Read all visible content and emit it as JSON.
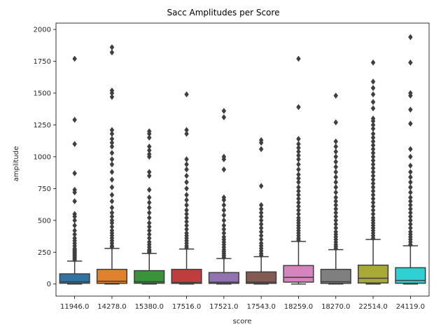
{
  "chart_data": {
    "type": "boxplot",
    "title": "Sacc Amplitudes per Score",
    "xlabel": "score",
    "ylabel": "amplitude",
    "ylim": [
      -95,
      2050
    ],
    "yticks": [
      0,
      250,
      500,
      750,
      1000,
      1250,
      1500,
      1750,
      2000
    ],
    "grid": false,
    "categories": [
      "11946.0",
      "14278.0",
      "15380.0",
      "17516.0",
      "17521.0",
      "17543.0",
      "18259.0",
      "18270.0",
      "22514.0",
      "24119.0"
    ],
    "colors": [
      "#3274a1",
      "#e1812c",
      "#3a923a",
      "#c03d3e",
      "#9372b2",
      "#845b53",
      "#d684bd",
      "#7f7f7f",
      "#a9aa35",
      "#2ed0d3"
    ],
    "boxes": [
      {
        "min": 0,
        "q1": 6,
        "median": 18,
        "q3": 80,
        "max": 180,
        "outliers": [
          190,
          200,
          210,
          220,
          230,
          240,
          250,
          260,
          270,
          280,
          300,
          320,
          340,
          360,
          390,
          420,
          460,
          500,
          530,
          550,
          650,
          720,
          740,
          870,
          1100,
          1290,
          1770
        ]
      },
      {
        "min": 0,
        "q1": 5,
        "median": 22,
        "q3": 115,
        "max": 280,
        "outliers": [
          290,
          300,
          320,
          340,
          360,
          380,
          400,
          420,
          450,
          480,
          500,
          530,
          560,
          600,
          650,
          700,
          760,
          820,
          880,
          940,
          980,
          1030,
          1080,
          1110,
          1140,
          1180,
          1210,
          1470,
          1500,
          1520,
          1820,
          1860
        ]
      },
      {
        "min": 0,
        "q1": 6,
        "median": 18,
        "q3": 105,
        "max": 240,
        "outliers": [
          250,
          260,
          270,
          290,
          310,
          330,
          360,
          390,
          420,
          450,
          480,
          520,
          560,
          600,
          640,
          680,
          740,
          850,
          880,
          1000,
          1020,
          1050,
          1080,
          1150,
          1180,
          1200
        ]
      },
      {
        "min": 0,
        "q1": 5,
        "median": 12,
        "q3": 115,
        "max": 275,
        "outliers": [
          285,
          300,
          320,
          340,
          360,
          380,
          400,
          430,
          460,
          490,
          520,
          550,
          580,
          620,
          660,
          700,
          750,
          800,
          850,
          900,
          940,
          980,
          1180,
          1210,
          1490
        ]
      },
      {
        "min": 0,
        "q1": 5,
        "median": 14,
        "q3": 90,
        "max": 200,
        "outliers": [
          210,
          225,
          240,
          255,
          270,
          290,
          310,
          330,
          350,
          370,
          400,
          430,
          460,
          500,
          540,
          580,
          620,
          660,
          680,
          900,
          980,
          1000,
          1310,
          1360
        ]
      },
      {
        "min": 0,
        "q1": 5,
        "median": 14,
        "q3": 95,
        "max": 215,
        "outliers": [
          225,
          240,
          260,
          280,
          300,
          320,
          350,
          380,
          410,
          440,
          470,
          500,
          530,
          560,
          590,
          620,
          770,
          1060,
          1110,
          1130
        ]
      },
      {
        "min": 0,
        "q1": 15,
        "median": 52,
        "q3": 145,
        "max": 335,
        "outliers": [
          345,
          360,
          380,
          400,
          420,
          440,
          460,
          480,
          500,
          520,
          550,
          580,
          610,
          640,
          670,
          700,
          730,
          760,
          800,
          830,
          860,
          900,
          940,
          980,
          1010,
          1040,
          1070,
          1100,
          1140,
          1390,
          1770
        ]
      },
      {
        "min": 0,
        "q1": 5,
        "median": 18,
        "q3": 115,
        "max": 270,
        "outliers": [
          280,
          295,
          310,
          330,
          350,
          370,
          390,
          410,
          440,
          470,
          500,
          530,
          560,
          590,
          620,
          650,
          680,
          720,
          760,
          800,
          840,
          880,
          920,
          960,
          1000,
          1040,
          1080,
          1120,
          1270,
          1480
        ]
      },
      {
        "min": 0,
        "q1": 8,
        "median": 45,
        "q3": 148,
        "max": 350,
        "outliers": [
          360,
          380,
          400,
          420,
          440,
          460,
          480,
          500,
          520,
          550,
          580,
          610,
          640,
          670,
          700,
          730,
          760,
          790,
          820,
          850,
          880,
          910,
          940,
          970,
          1000,
          1030,
          1060,
          1090,
          1120,
          1150,
          1180,
          1220,
          1250,
          1280,
          1300,
          1380,
          1430,
          1490,
          1540,
          1590,
          1740
        ]
      },
      {
        "min": 0,
        "q1": 6,
        "median": 28,
        "q3": 128,
        "max": 300,
        "outliers": [
          310,
          330,
          350,
          370,
          390,
          410,
          440,
          470,
          500,
          530,
          560,
          590,
          620,
          650,
          680,
          720,
          760,
          800,
          840,
          880,
          930,
          1000,
          1060,
          1260,
          1370,
          1480,
          1500,
          1740,
          1940
        ]
      }
    ]
  }
}
